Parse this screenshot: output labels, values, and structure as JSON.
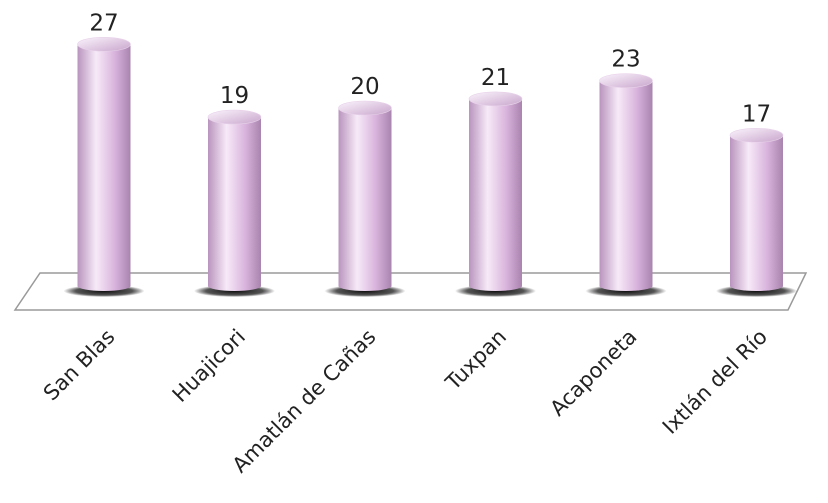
{
  "chart_data": {
    "type": "bar",
    "categories": [
      "San Blas",
      "Huajicori",
      "Amatlán de Cañas",
      "Tuxpan",
      "Acaponeta",
      "Ixtlán del Río"
    ],
    "values": [
      27,
      19,
      20,
      21,
      23,
      17
    ],
    "title": "",
    "xlabel": "",
    "ylabel": "",
    "ylim": [
      0,
      27
    ],
    "grid": false,
    "legend": "none",
    "bar_style": "3d-cylinder",
    "colors": {
      "bar_light": "#f7eaf8",
      "bar_mid": "#d9b4dd",
      "bar_dark": "#a984ae",
      "top_light": "#fbf4fc",
      "top_dark": "#c9a6cd",
      "floor_stroke": "#9a9a9a"
    }
  }
}
